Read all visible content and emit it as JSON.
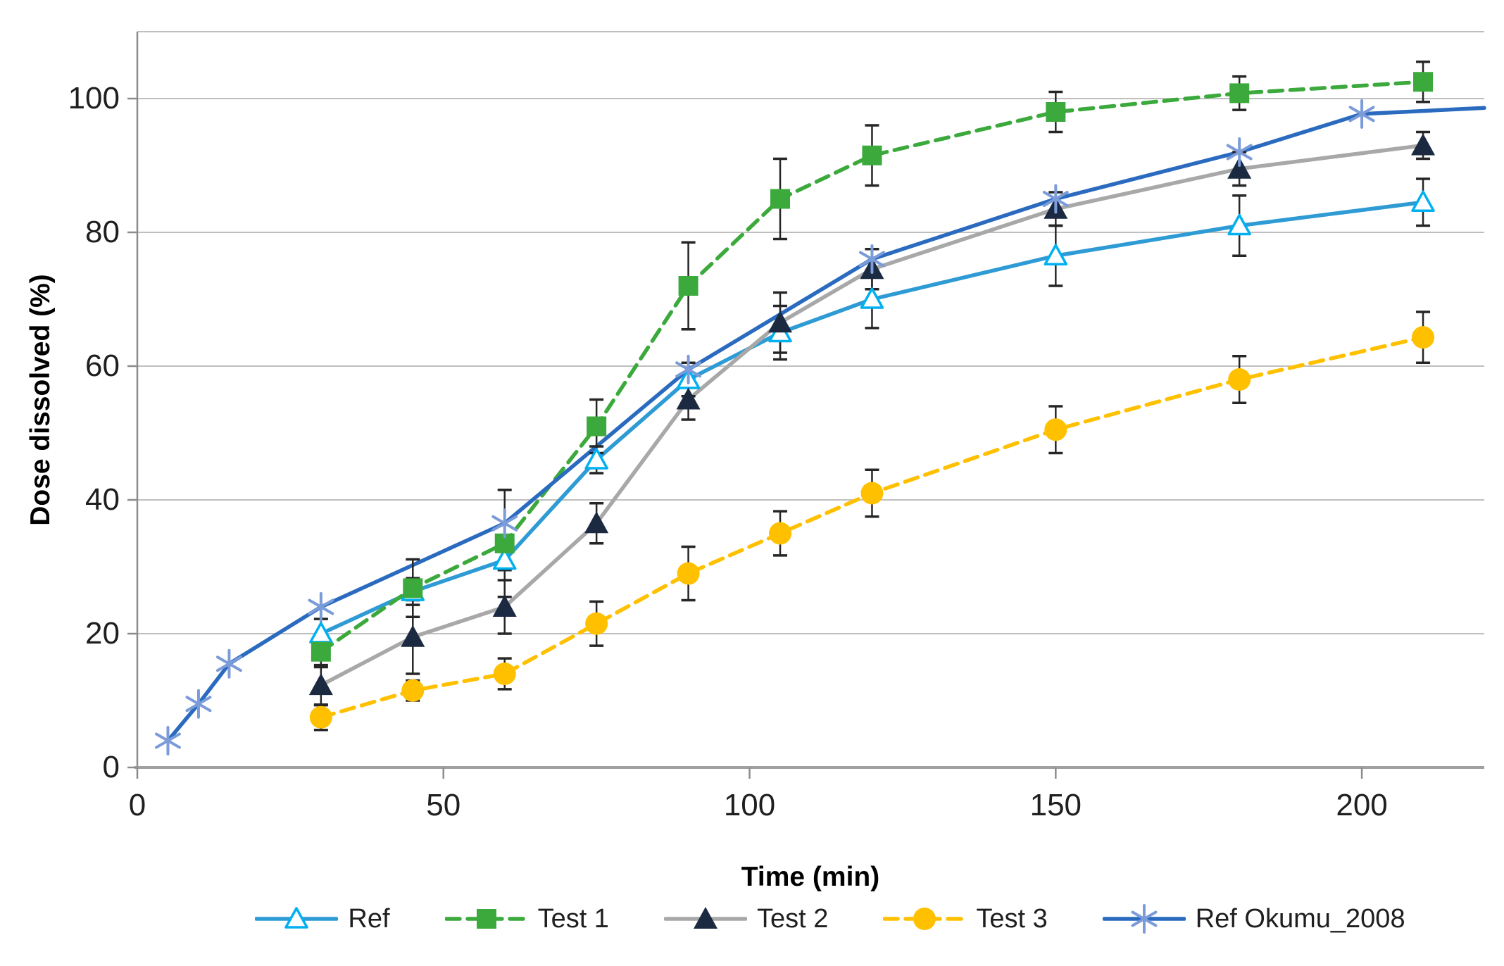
{
  "chart_data": {
    "type": "line",
    "title": "",
    "xlabel": "Time (min)",
    "ylabel": "Dose dissolved (%)",
    "xlim": [
      0,
      220
    ],
    "ylim": [
      0,
      110
    ],
    "xticks": [
      0,
      50,
      100,
      150,
      200
    ],
    "yticks": [
      0,
      20,
      40,
      60,
      80,
      100
    ],
    "grid": "horizontal",
    "legend_position": "bottom",
    "colors": {
      "gridline": "#BFBFBF",
      "axis_line": "#8C8C8C",
      "x_axis_line": "#A0A0A0",
      "error_bar": "#262626",
      "tick_text": "#1f1f1f"
    },
    "series": [
      {
        "name": "Ref",
        "line_color": "#2E9BD5",
        "line_style": "solid",
        "marker": "open-triangle",
        "marker_color": "#00B0F0",
        "x": [
          30,
          45,
          60,
          75,
          90,
          105,
          120,
          150,
          180,
          210
        ],
        "y": [
          20,
          26.3,
          31,
          46,
          58,
          65,
          70,
          76.5,
          81,
          84.5
        ],
        "yerr": [
          2.2,
          2,
          1.5,
          2,
          2.5,
          4,
          4.3,
          4.5,
          4.5,
          3.5
        ]
      },
      {
        "name": "Test 1",
        "line_color": "#3BA93B",
        "line_style": "dashed",
        "marker": "square",
        "marker_color": "#3BA93B",
        "x": [
          30,
          45,
          60,
          75,
          90,
          105,
          120,
          150,
          180,
          210
        ],
        "y": [
          17.3,
          26.8,
          33.5,
          51,
          72,
          85,
          91.5,
          98,
          100.8,
          102.5
        ],
        "yerr": [
          2.3,
          4.3,
          8,
          4,
          6.5,
          6,
          4.5,
          3,
          2.5,
          3
        ]
      },
      {
        "name": "Test 2",
        "line_color": "#A8A8A8",
        "line_style": "solid",
        "marker": "triangle",
        "marker_color": "#1B2A40",
        "x": [
          30,
          45,
          60,
          75,
          90,
          105,
          120,
          150,
          180,
          210
        ],
        "y": [
          12.3,
          19.5,
          24,
          36.5,
          55,
          66.5,
          74.5,
          83.5,
          89.5,
          93
        ],
        "yerr": [
          3,
          5.5,
          4,
          3,
          3,
          4.5,
          3,
          2.5,
          2.5,
          2
        ]
      },
      {
        "name": "Test 3",
        "line_color": "#FFC000",
        "line_style": "dashed",
        "marker": "circle",
        "marker_color": "#FFC000",
        "x": [
          30,
          45,
          60,
          75,
          90,
          105,
          120,
          150,
          180,
          210
        ],
        "y": [
          7.5,
          11.5,
          14,
          21.5,
          29,
          35,
          41,
          50.5,
          58,
          64.3
        ],
        "yerr": [
          1.9,
          1.5,
          2.3,
          3.3,
          4,
          3.3,
          3.5,
          3.5,
          3.5,
          3.8
        ]
      },
      {
        "name": "Ref Okumu_2008",
        "line_color": "#2A6BBF",
        "line_style": "solid",
        "marker": "asterisk",
        "marker_color": "#7B9BD9",
        "x": [
          5,
          10,
          15,
          30,
          60,
          90,
          120,
          150,
          180,
          200,
          220
        ],
        "y": [
          4,
          9.5,
          15.5,
          24,
          36.5,
          59.5,
          76,
          85,
          92,
          97.7,
          98.6
        ],
        "yerr": [],
        "skip_marker_last": true
      }
    ]
  }
}
